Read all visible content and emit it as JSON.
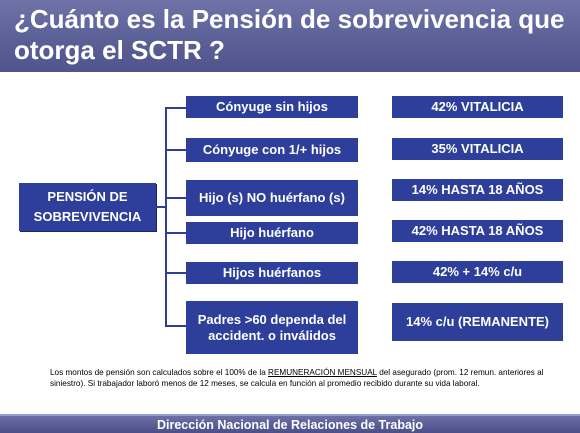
{
  "header": {
    "title": "¿Cuánto es la Pensión de sobrevivencia que otorga el SCTR ?"
  },
  "root": {
    "label": "PENSIÓN DE SOBREVIVENCIA"
  },
  "beneficiaries": [
    {
      "label": "Cónyuge sin hijos",
      "benefit": "42% VITALICIA"
    },
    {
      "label": "Cónyuge con 1/+ hijos",
      "benefit": "35% VITALICIA"
    },
    {
      "label": "Hijo (s) NO huérfano (s)",
      "benefit": "14% HASTA 18 AÑOS"
    },
    {
      "label": "Hijo huérfano",
      "benefit": "42% HASTA 18 AÑOS"
    },
    {
      "label": "Hijos huérfanos",
      "benefit": "42% + 14% c/u"
    },
    {
      "label": "Padres >60 dependa del accident. o inválidos",
      "benefit": "14% c/u (REMANENTE)"
    }
  ],
  "footnote": {
    "text_before": "Los montos de pensión son calculados  sobre el 100% de la ",
    "underlined": "REMUNERACIÓN MENSUAL",
    "text_after": " del asegurado (prom. 12 remun. anteriores al siniestro). Si trabajador laboró menos de 12 meses, se calcula en función al promedio recibido durante su vida laboral."
  },
  "footer": {
    "text": "Dirección Nacional de Relaciones de Trabajo"
  },
  "colors": {
    "box_fill": "#2d3f9a",
    "header_fill": "#5b6097",
    "footer_fill": "#4f528a"
  }
}
